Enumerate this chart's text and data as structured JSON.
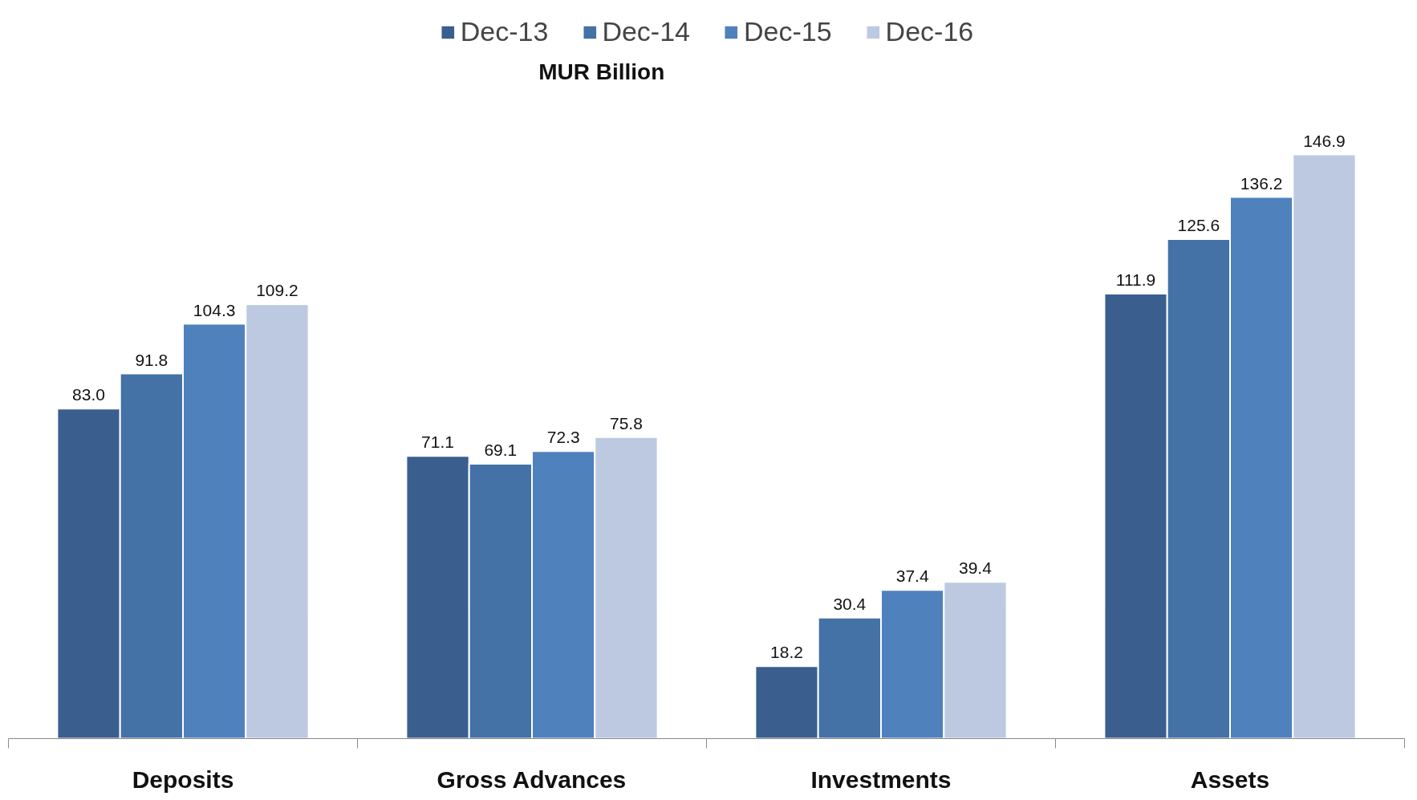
{
  "chart_data": {
    "type": "bar",
    "title": "MUR Billion",
    "categories": [
      "Deposits",
      "Gross Advances",
      "Investments",
      "Assets"
    ],
    "series": [
      {
        "name": "Dec-13",
        "color": "#3a5f8f",
        "values": [
          83.0,
          71.1,
          18.2,
          111.9
        ],
        "value_labels": [
          "83.0",
          "71.1",
          "18.2",
          "111.9"
        ]
      },
      {
        "name": "Dec-14",
        "color": "#4471a6",
        "values": [
          91.8,
          69.1,
          30.4,
          125.6
        ],
        "value_labels": [
          "91.8",
          "69.1",
          "30.4",
          "125.6"
        ]
      },
      {
        "name": "Dec-15",
        "color": "#4f81bd",
        "values": [
          104.3,
          72.3,
          37.4,
          136.2
        ],
        "value_labels": [
          "104.3",
          "72.3",
          "37.4",
          "136.2"
        ]
      },
      {
        "name": "Dec-16",
        "color": "#bcc9e1",
        "values": [
          109.2,
          75.8,
          39.4,
          146.9
        ],
        "value_labels": [
          "109.2",
          "75.8",
          "39.4",
          "146.9"
        ]
      }
    ],
    "legend": "top",
    "grid": false,
    "tick_labels": "x"
  }
}
